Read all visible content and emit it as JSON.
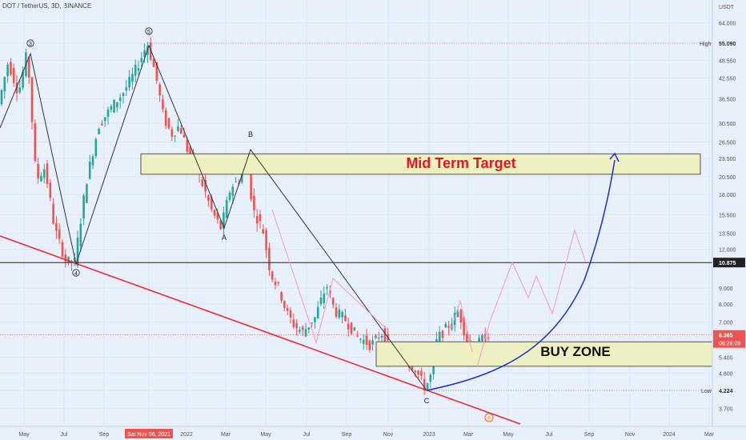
{
  "header": {
    "symbol": "DOT / TetherUS, 3D, BINANCE"
  },
  "chart_data": {
    "type": "candlestick",
    "symbol": "DOT / TetherUS, 3D, BINANCE",
    "y_axis_unit": "USDT",
    "y_scale": "log",
    "y_ticks": [
      "64.000",
      "55.090",
      "48.550",
      "42.550",
      "36.500",
      "30.500",
      "26.500",
      "23.500",
      "20.500",
      "18.000",
      "15.500",
      "13.500",
      "12.000",
      "10.875",
      "9.000",
      "8.000",
      "7.000",
      "6.365",
      "5.400",
      "4.800",
      "4.224",
      "3.700"
    ],
    "x_ticks": [
      "May",
      "Jul",
      "Sep",
      "Sat Nov 06, 2021",
      "2022",
      "Mar",
      "May",
      "Jul",
      "Sep",
      "Nov",
      "2023",
      "Mar",
      "May",
      "Jul",
      "Sep",
      "Nov",
      "2024",
      "Mar"
    ],
    "high_label": "High",
    "high_value": "55.090",
    "low_label": "Low",
    "low_value": "4.224",
    "current_price": "6.365",
    "countdown": "06:28:09",
    "horizontal_level": "10.875",
    "wave_labels": [
      "3",
      "5",
      "4",
      "B",
      "A",
      "C"
    ],
    "zones": [
      {
        "label": "Mid Term Target",
        "low": 20.9,
        "high": 24.3,
        "label_color": "#e4161c"
      },
      {
        "label": "BUY ZONE",
        "low": 5.05,
        "high": 6.05,
        "label_color": "#111111"
      }
    ],
    "colors": {
      "up": "#26a69a",
      "down": "#ef5350",
      "trendline": "#f0202a",
      "projection": "#1a2fd0",
      "pink_path": "#f59ac4",
      "wave_lines": "#333333",
      "background": "#e8f0fb",
      "zone_fill": "#eef0c2"
    },
    "lightning_icon": "lightning-icon"
  }
}
